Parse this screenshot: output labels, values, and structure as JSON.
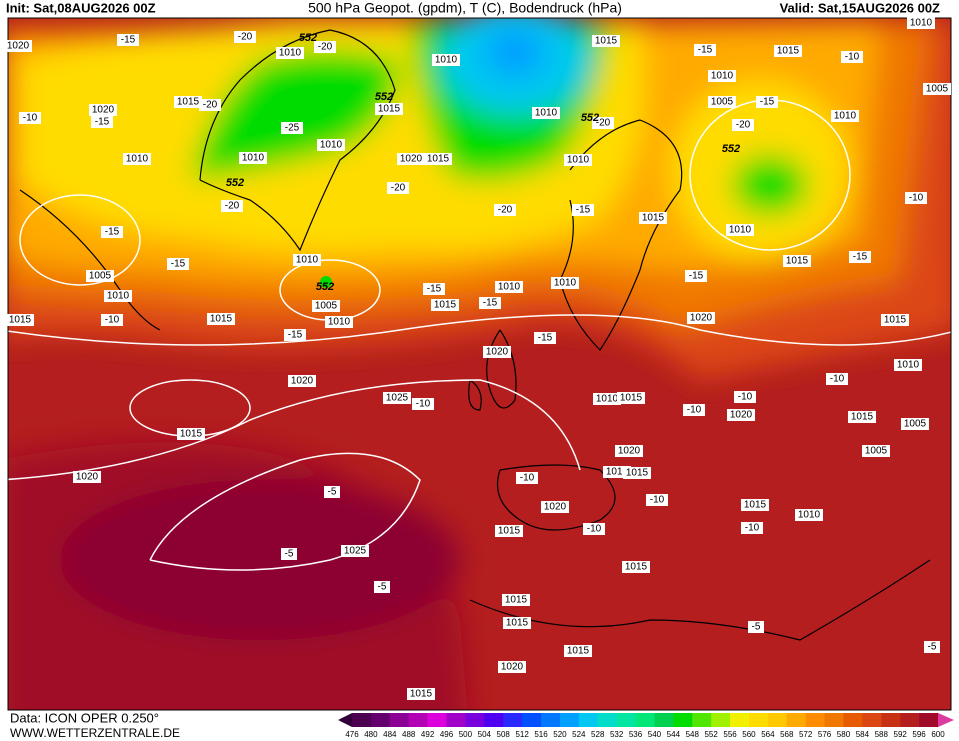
{
  "header": {
    "init": "Init: Sat,08AUG2026 00Z",
    "title": "500 hPa Geopot. (gpdm), T (C), Bodendruck (hPa)",
    "valid": "Valid: Sat,15AUG2026 00Z"
  },
  "footer": {
    "data": "Data: ICON OPER 0.250°",
    "site": "WWW.WETTERZENTRALE.DE"
  },
  "map_labels": [
    1020,
    -15,
    -20,
    1010,
    -20,
    1010,
    1015,
    -15,
    1015,
    -10,
    1010,
    1020,
    -10,
    -15,
    1015,
    -20,
    1010,
    1005,
    -15,
    1005,
    1015,
    -25,
    1010,
    -20,
    -20,
    1010,
    1010,
    1010,
    1010,
    1020,
    1015,
    1010,
    -20,
    -20,
    -15,
    -20,
    1015,
    1010,
    -10,
    -15,
    -15,
    1010,
    1005,
    1010,
    1015,
    -15,
    1005,
    1010,
    -15,
    1015,
    -15,
    1010,
    1010,
    -15,
    1015,
    -10,
    1015,
    -15,
    1020,
    1015,
    1020,
    -15,
    -10,
    1010,
    1020,
    1025,
    -10,
    1010,
    1015,
    -10,
    -10,
    1020,
    1015,
    1005,
    1015,
    1020,
    1010,
    1015,
    1005,
    1020,
    -10,
    -5,
    -10,
    1020,
    1015,
    1010,
    1015,
    -10,
    -10,
    1025,
    -5,
    1015,
    -5,
    1015,
    1015,
    -5,
    1015,
    -5,
    1020,
    1015
  ],
  "contour_labels": [
    552,
    552,
    552,
    552,
    552,
    552
  ],
  "colorbar": {
    "labels": [
      476,
      480,
      484,
      488,
      492,
      496,
      500,
      504,
      508,
      512,
      516,
      520,
      524,
      528,
      532,
      536,
      540,
      544,
      548,
      552,
      556,
      560,
      564,
      568,
      572,
      576,
      580,
      584,
      588,
      592,
      596,
      600
    ],
    "colors": [
      "#4b0050",
      "#64006e",
      "#8c0096",
      "#b400b4",
      "#dc00dc",
      "#a000c8",
      "#7800dc",
      "#5000f0",
      "#2828ff",
      "#0050ff",
      "#0078ff",
      "#00a0ff",
      "#00c8f0",
      "#00dcc8",
      "#00e6a0",
      "#00e678",
      "#00d250",
      "#00dc00",
      "#50e600",
      "#a0f000",
      "#f0f000",
      "#ffdc00",
      "#ffc800",
      "#ffaa00",
      "#ff8c00",
      "#f07800",
      "#e65a00",
      "#dc4614",
      "#c83214",
      "#b41e1e",
      "#a00a28"
    ]
  }
}
